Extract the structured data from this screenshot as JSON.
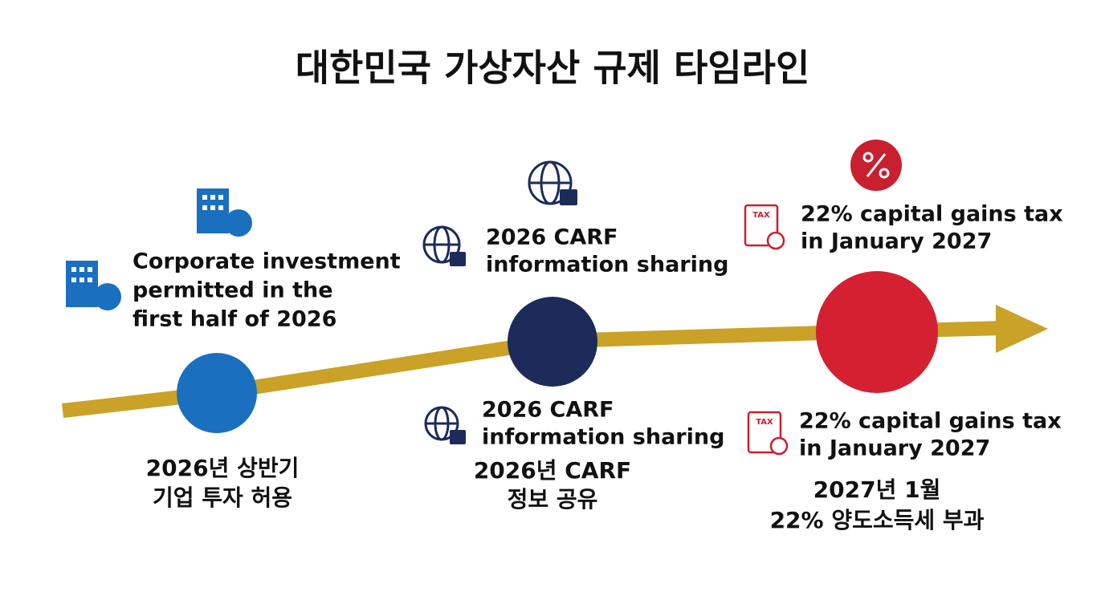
{
  "title": "대한민국 가상자산 규제 타임라인",
  "milestones": [
    {
      "upper_lines": [
        "Corporate investment",
        "permitted in the",
        "first half of 2026"
      ],
      "korean_lines": [
        "2026년 상반기",
        "기업 투자 허용"
      ]
    },
    {
      "upper_lines": [
        "2026 CARF",
        "information sharing"
      ],
      "lower_lines": [
        "2026 CARF",
        "information sharing"
      ],
      "korean_lines": [
        "2026년 CARF",
        "정보 공유"
      ]
    },
    {
      "upper_lines": [
        "22% capital gains tax",
        "in January 2027"
      ],
      "lower_lines": [
        "22% capital gains tax",
        "in January 2027"
      ],
      "korean_lines": [
        "2027년 1월",
        "22% 양도소득세 부과"
      ],
      "tax_icon_label": "TAX"
    }
  ]
}
